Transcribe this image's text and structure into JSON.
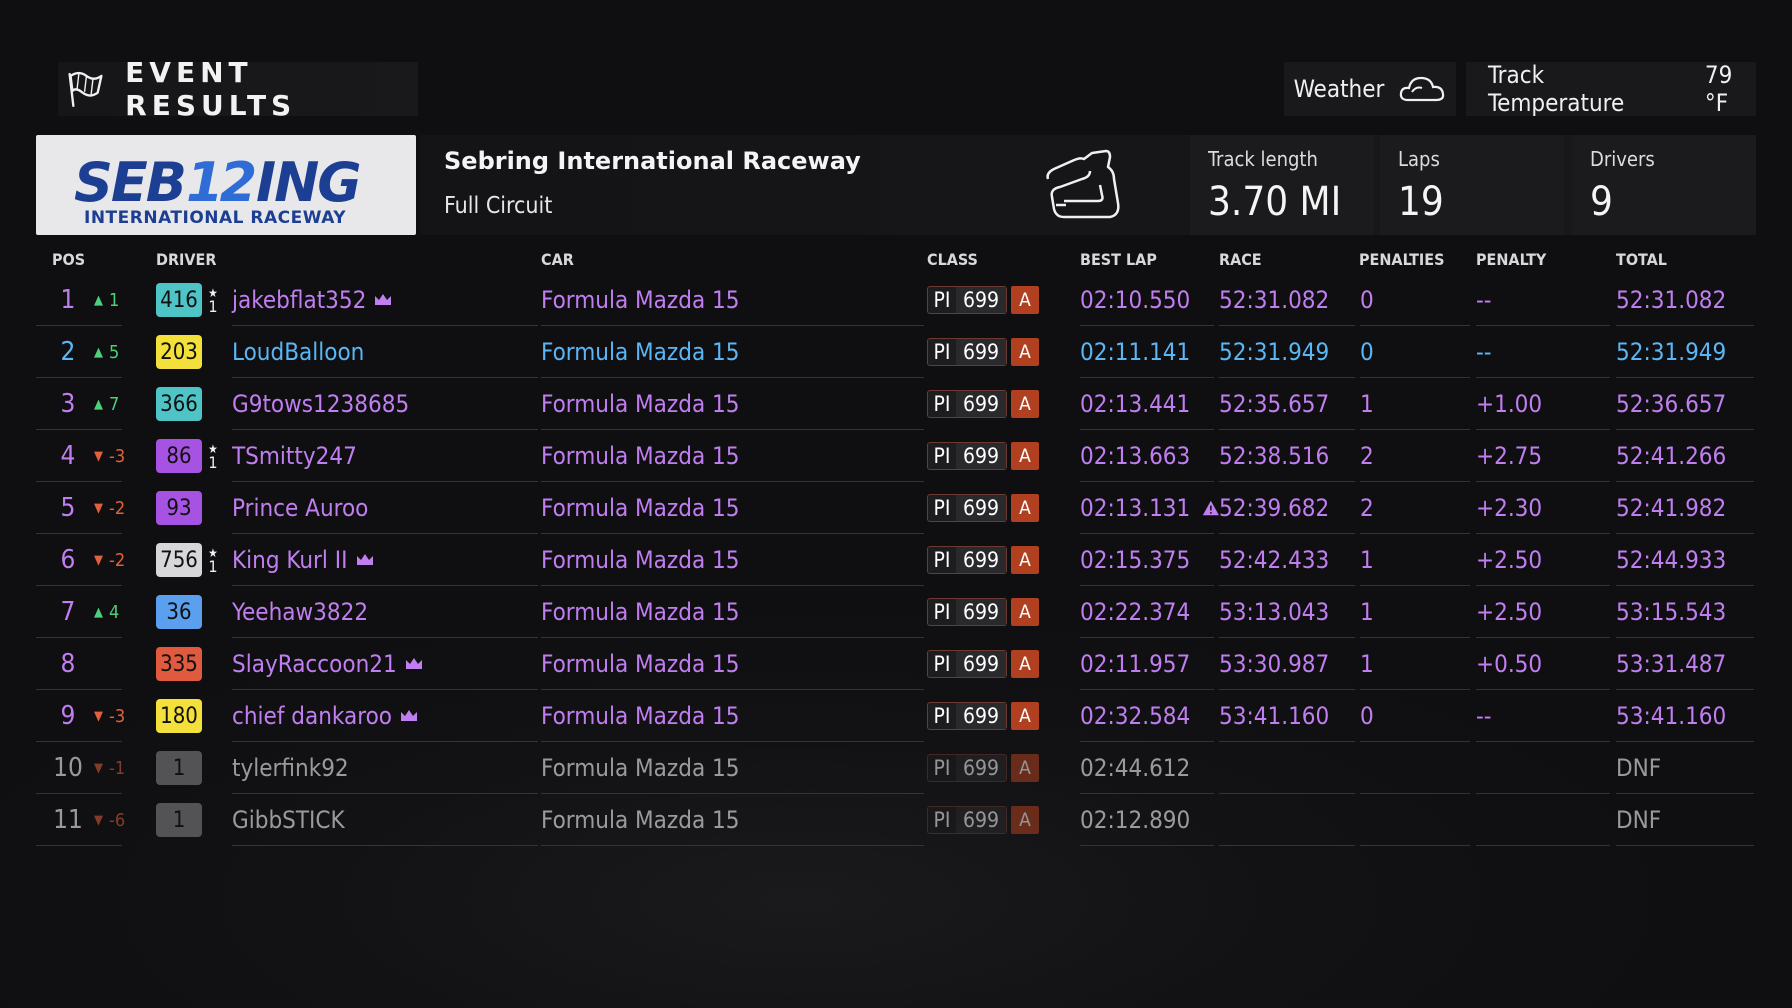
{
  "header": {
    "title": "EVENT RESULTS",
    "icon": "checkered-flag-icon"
  },
  "weather": {
    "label": "Weather",
    "icon": "cloud-icon",
    "temp_label": "Track Temperature",
    "temp_value": "79 °F"
  },
  "track": {
    "logo_main": "SEB12ING",
    "logo_sub": "INTERNATIONAL RACEWAY",
    "name": "Sebring International Raceway",
    "layout": "Full Circuit",
    "map_icon": "track-map-icon",
    "stats": [
      {
        "label": "Track length",
        "value": "3.70 MI"
      },
      {
        "label": "Laps",
        "value": "19"
      },
      {
        "label": "Drivers",
        "value": "9"
      }
    ]
  },
  "columns": {
    "pos": "POS",
    "driver": "DRIVER",
    "car": "CAR",
    "class": "CLASS",
    "best_lap": "BEST LAP",
    "race": "RACE",
    "penalties": "PENALTIES",
    "penalty": "PENALTY",
    "total": "TOTAL"
  },
  "colors": {
    "purple": "#c07ef0",
    "blue": "#5ab6f5",
    "white": "#e9e9ee",
    "grey": "#9a9aa0",
    "up": "#4cd07a",
    "down": "#e0613c",
    "class_a": "#b0401f"
  },
  "rows": [
    {
      "pos": "1",
      "dir": "up",
      "chg": "1",
      "rank": "416",
      "rank_color": "#4ec4c6",
      "star": true,
      "star_num": "1",
      "driver": "jakebflat352",
      "crown": true,
      "car": "Formula Mazda 15",
      "pi_label": "PI",
      "pi": "699",
      "class": "A",
      "best": "02:10.550",
      "warn": false,
      "race": "52:31.082",
      "pens": "0",
      "pen": "--",
      "total": "52:31.082",
      "color": "#c07ef0",
      "dim": false
    },
    {
      "pos": "2",
      "dir": "up",
      "chg": "5",
      "rank": "203",
      "rank_color": "#f3e03a",
      "star": false,
      "star_num": "",
      "driver": "LoudBalloon",
      "crown": false,
      "car": "Formula Mazda 15",
      "pi_label": "PI",
      "pi": "699",
      "class": "A",
      "best": "02:11.141",
      "warn": false,
      "race": "52:31.949",
      "pens": "0",
      "pen": "--",
      "total": "52:31.949",
      "color": "#5ab6f5",
      "dim": false
    },
    {
      "pos": "3",
      "dir": "up",
      "chg": "7",
      "rank": "366",
      "rank_color": "#4ec4c6",
      "star": false,
      "star_num": "",
      "driver": "G9tows1238685",
      "crown": false,
      "car": "Formula Mazda 15",
      "pi_label": "PI",
      "pi": "699",
      "class": "A",
      "best": "02:13.441",
      "warn": false,
      "race": "52:35.657",
      "pens": "1",
      "pen": "+1.00",
      "total": "52:36.657",
      "color": "#c07ef0",
      "dim": false
    },
    {
      "pos": "4",
      "dir": "down",
      "chg": "-3",
      "rank": "86",
      "rank_color": "#a653e3",
      "star": true,
      "star_num": "1",
      "driver": "TSmitty247",
      "crown": false,
      "car": "Formula Mazda 15",
      "pi_label": "PI",
      "pi": "699",
      "class": "A",
      "best": "02:13.663",
      "warn": false,
      "race": "52:38.516",
      "pens": "2",
      "pen": "+2.75",
      "total": "52:41.266",
      "color": "#c07ef0",
      "dim": false
    },
    {
      "pos": "5",
      "dir": "down",
      "chg": "-2",
      "rank": "93",
      "rank_color": "#a653e3",
      "star": false,
      "star_num": "",
      "driver": "Prince Auroo",
      "crown": false,
      "car": "Formula Mazda 15",
      "pi_label": "PI",
      "pi": "699",
      "class": "A",
      "best": "02:13.131",
      "warn": true,
      "race": "52:39.682",
      "pens": "2",
      "pen": "+2.30",
      "total": "52:41.982",
      "color": "#c07ef0",
      "dim": false
    },
    {
      "pos": "6",
      "dir": "down",
      "chg": "-2",
      "rank": "756",
      "rank_color": "#d7d7d9",
      "star": true,
      "star_num": "1",
      "driver": "King Kurl II",
      "crown": true,
      "car": "Formula Mazda 15",
      "pi_label": "PI",
      "pi": "699",
      "class": "A",
      "best": "02:15.375",
      "warn": false,
      "race": "52:42.433",
      "pens": "1",
      "pen": "+2.50",
      "total": "52:44.933",
      "color": "#c07ef0",
      "dim": false
    },
    {
      "pos": "7",
      "dir": "up",
      "chg": "4",
      "rank": "36",
      "rank_color": "#5aa0ef",
      "star": false,
      "star_num": "",
      "driver": "Yeehaw3822",
      "crown": false,
      "car": "Formula Mazda 15",
      "pi_label": "PI",
      "pi": "699",
      "class": "A",
      "best": "02:22.374",
      "warn": false,
      "race": "53:13.043",
      "pens": "1",
      "pen": "+2.50",
      "total": "53:15.543",
      "color": "#c07ef0",
      "dim": false
    },
    {
      "pos": "8",
      "dir": "none",
      "chg": "",
      "rank": "335",
      "rank_color": "#df5a3e",
      "star": false,
      "star_num": "",
      "driver": "SlayRaccoon21",
      "crown": true,
      "car": "Formula Mazda 15",
      "pi_label": "PI",
      "pi": "699",
      "class": "A",
      "best": "02:11.957",
      "warn": false,
      "race": "53:30.987",
      "pens": "1",
      "pen": "+0.50",
      "total": "53:31.487",
      "color": "#c07ef0",
      "dim": false
    },
    {
      "pos": "9",
      "dir": "down",
      "chg": "-3",
      "rank": "180",
      "rank_color": "#f3e03a",
      "star": false,
      "star_num": "",
      "driver": "chief dankaroo",
      "crown": true,
      "car": "Formula Mazda 15",
      "pi_label": "PI",
      "pi": "699",
      "class": "A",
      "best": "02:32.584",
      "warn": false,
      "race": "53:41.160",
      "pens": "0",
      "pen": "--",
      "total": "53:41.160",
      "color": "#c07ef0",
      "dim": false
    },
    {
      "pos": "10",
      "dir": "down",
      "chg": "-1",
      "rank": "1",
      "rank_color": "#8a8a8e",
      "star": false,
      "star_num": "",
      "driver": "tylerfink92",
      "crown": false,
      "car": "Formula Mazda 15",
      "pi_label": "PI",
      "pi": "699",
      "class": "A",
      "best": "02:44.612",
      "warn": false,
      "race": "",
      "pens": "",
      "pen": "",
      "total": "DNF",
      "color": "#c8c8cc",
      "dim": true
    },
    {
      "pos": "11",
      "dir": "down",
      "chg": "-6",
      "rank": "1",
      "rank_color": "#8a8a8e",
      "star": false,
      "star_num": "",
      "driver": "GibbSTICK",
      "crown": false,
      "car": "Formula Mazda 15",
      "pi_label": "PI",
      "pi": "699",
      "class": "A",
      "best": "02:12.890",
      "warn": false,
      "race": "",
      "pens": "",
      "pen": "",
      "total": "DNF",
      "color": "#c8c8cc",
      "dim": true
    }
  ]
}
